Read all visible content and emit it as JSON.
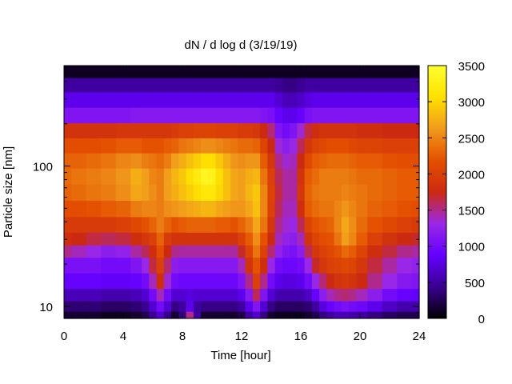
{
  "chart_data": {
    "type": "heatmap",
    "title": "dN / d log d (3/19/19)",
    "xlabel": "Time [hour]",
    "ylabel": "Particle size [nm]",
    "xlim": [
      0,
      24
    ],
    "ylim": [
      8.2,
      520
    ],
    "yscale": "log",
    "x_ticks": [
      0,
      4,
      8,
      12,
      16,
      20,
      24
    ],
    "y_ticks": [
      10,
      100
    ],
    "colorbar": {
      "range": [
        0,
        3500
      ],
      "ticks": [
        0,
        500,
        1000,
        1500,
        2000,
        2500,
        3000,
        3500
      ],
      "colormap": [
        "#000000",
        "#3a0090",
        "#6400ff",
        "#9a28e6",
        "#cc2a10",
        "#e45000",
        "#f09a1c",
        "#ffe100",
        "#ffff30"
      ]
    },
    "times_hour": [
      0,
      1,
      2,
      3,
      4,
      5,
      5.5,
      6,
      6.5,
      7,
      7.5,
      8,
      8.5,
      9,
      9.5,
      10,
      10.5,
      11,
      11.5,
      12,
      12.5,
      13,
      13.5,
      14,
      14.5,
      15,
      15.5,
      16,
      16.5,
      17,
      17.5,
      18,
      18.5,
      19,
      19.5,
      20,
      21,
      22,
      23,
      24
    ],
    "sizes_nm": [
      8.5,
      10,
      12,
      15,
      20,
      25,
      30,
      38,
      50,
      65,
      85,
      110,
      140,
      180,
      230,
      300,
      380,
      480
    ],
    "values": [
      [
        150,
        350,
        600,
        900,
        1050,
        1500,
        1800,
        1950,
        2150,
        2300,
        2350,
        2300,
        2150,
        1850,
        1100,
        800,
        500,
        100
      ],
      [
        150,
        350,
        600,
        900,
        1050,
        1400,
        1750,
        1950,
        2150,
        2350,
        2400,
        2300,
        2150,
        1850,
        1100,
        800,
        500,
        100
      ],
      [
        150,
        350,
        600,
        900,
        1050,
        1300,
        1650,
        1950,
        2200,
        2400,
        2450,
        2350,
        2150,
        1850,
        1100,
        800,
        500,
        100
      ],
      [
        100,
        300,
        550,
        850,
        1000,
        1200,
        1600,
        1950,
        2250,
        2450,
        2500,
        2400,
        2200,
        1850,
        1100,
        800,
        500,
        100
      ],
      [
        100,
        300,
        550,
        850,
        1000,
        1250,
        1650,
        2000,
        2300,
        2550,
        2600,
        2500,
        2250,
        1900,
        1100,
        800,
        500,
        100
      ],
      [
        150,
        350,
        600,
        900,
        1100,
        1450,
        1800,
        2100,
        2450,
        2700,
        2750,
        2550,
        2250,
        1900,
        1150,
        800,
        500,
        100
      ],
      [
        250,
        450,
        700,
        1000,
        1300,
        1600,
        1900,
        2200,
        2500,
        2650,
        2650,
        2450,
        2200,
        1900,
        1150,
        800,
        500,
        100
      ],
      [
        450,
        700,
        1000,
        1400,
        1650,
        1800,
        2000,
        2300,
        2500,
        2550,
        2500,
        2400,
        2200,
        1900,
        1150,
        800,
        500,
        100
      ],
      [
        700,
        1000,
        1400,
        1800,
        2000,
        2150,
        2300,
        2450,
        2450,
        2450,
        2450,
        2350,
        2200,
        1900,
        1150,
        800,
        500,
        100
      ],
      [
        400,
        700,
        1000,
        1350,
        1550,
        1750,
        1950,
        2300,
        2550,
        2650,
        2650,
        2450,
        2250,
        1900,
        1150,
        800,
        500,
        100
      ],
      [
        150,
        400,
        700,
        1000,
        1200,
        1500,
        1850,
        2200,
        2600,
        2750,
        2800,
        2650,
        2300,
        1950,
        1150,
        800,
        500,
        100
      ],
      [
        400,
        500,
        700,
        950,
        1150,
        1450,
        1850,
        2250,
        2650,
        2850,
        2900,
        2750,
        2400,
        2000,
        1150,
        800,
        500,
        100
      ],
      [
        1500,
        800,
        750,
        950,
        1150,
        1450,
        1850,
        2300,
        2700,
        2950,
        3050,
        2850,
        2450,
        2000,
        1150,
        800,
        500,
        100
      ],
      [
        500,
        500,
        700,
        950,
        1150,
        1450,
        1850,
        2300,
        2750,
        3050,
        3200,
        2950,
        2500,
        2050,
        1150,
        800,
        500,
        100
      ],
      [
        150,
        400,
        700,
        950,
        1150,
        1450,
        1850,
        2300,
        2800,
        3150,
        3350,
        3050,
        2550,
        2050,
        1150,
        800,
        500,
        100
      ],
      [
        150,
        400,
        700,
        950,
        1150,
        1450,
        1850,
        2300,
        2800,
        3150,
        3300,
        3050,
        2550,
        2050,
        1150,
        800,
        500,
        100
      ],
      [
        150,
        400,
        700,
        950,
        1150,
        1450,
        1850,
        2250,
        2700,
        3000,
        3050,
        2900,
        2500,
        2000,
        1150,
        800,
        500,
        100
      ],
      [
        150,
        400,
        700,
        950,
        1150,
        1450,
        1850,
        2250,
        2650,
        2850,
        2850,
        2750,
        2450,
        2000,
        1150,
        800,
        500,
        100
      ],
      [
        150,
        400,
        700,
        950,
        1150,
        1450,
        1850,
        2200,
        2600,
        2700,
        2700,
        2600,
        2400,
        2000,
        1150,
        800,
        500,
        100
      ],
      [
        250,
        500,
        800,
        1100,
        1400,
        1700,
        2000,
        2300,
        2600,
        2650,
        2650,
        2550,
        2350,
        1950,
        1150,
        800,
        500,
        100
      ],
      [
        500,
        800,
        1150,
        1500,
        1850,
        2050,
        2250,
        2450,
        2700,
        2800,
        2750,
        2600,
        2350,
        1950,
        1150,
        800,
        500,
        100
      ],
      [
        700,
        1100,
        1600,
        2000,
        2200,
        2400,
        2550,
        2700,
        2850,
        2900,
        2800,
        2600,
        2300,
        1900,
        1150,
        800,
        500,
        100
      ],
      [
        400,
        700,
        1100,
        1500,
        1800,
        2000,
        2200,
        2400,
        2500,
        2500,
        2400,
        2250,
        2050,
        1750,
        1100,
        800,
        500,
        100
      ],
      [
        150,
        400,
        700,
        1000,
        1300,
        1550,
        1750,
        1900,
        2000,
        2050,
        2000,
        1900,
        1750,
        1550,
        1050,
        800,
        500,
        100
      ],
      [
        100,
        300,
        550,
        800,
        1000,
        1250,
        1400,
        1500,
        1600,
        1650,
        1600,
        1500,
        1350,
        1100,
        900,
        700,
        450,
        100
      ],
      [
        100,
        300,
        550,
        750,
        950,
        1100,
        1250,
        1350,
        1400,
        1450,
        1450,
        1350,
        1200,
        1000,
        800,
        600,
        400,
        100
      ],
      [
        100,
        300,
        550,
        750,
        950,
        1050,
        1200,
        1300,
        1400,
        1450,
        1450,
        1400,
        1300,
        1100,
        800,
        600,
        400,
        100
      ],
      [
        100,
        300,
        550,
        800,
        1000,
        1200,
        1400,
        1600,
        1800,
        1900,
        1850,
        1750,
        1600,
        1350,
        900,
        650,
        450,
        100
      ],
      [
        150,
        350,
        650,
        1000,
        1300,
        1600,
        1850,
        2050,
        2250,
        2300,
        2250,
        2100,
        1900,
        1650,
        1050,
        750,
        500,
        100
      ],
      [
        250,
        500,
        900,
        1300,
        1700,
        1900,
        2050,
        2200,
        2350,
        2400,
        2350,
        2250,
        2050,
        1800,
        1100,
        800,
        500,
        100
      ],
      [
        400,
        750,
        1200,
        1550,
        1900,
        2000,
        2150,
        2250,
        2400,
        2450,
        2450,
        2300,
        2100,
        1850,
        1100,
        800,
        500,
        100
      ],
      [
        500,
        900,
        1400,
        1750,
        2000,
        2100,
        2200,
        2300,
        2400,
        2450,
        2450,
        2350,
        2150,
        1850,
        1100,
        800,
        500,
        100
      ],
      [
        600,
        1000,
        1500,
        1850,
        2050,
        2200,
        2400,
        2500,
        2500,
        2450,
        2450,
        2350,
        2150,
        1850,
        1100,
        800,
        500,
        100
      ],
      [
        600,
        1050,
        1550,
        1900,
        2100,
        2350,
        2650,
        2700,
        2600,
        2500,
        2450,
        2350,
        2150,
        1850,
        1100,
        800,
        500,
        100
      ],
      [
        550,
        1000,
        1500,
        1850,
        2050,
        2250,
        2500,
        2550,
        2500,
        2450,
        2400,
        2300,
        2100,
        1850,
        1100,
        800,
        500,
        100
      ],
      [
        500,
        950,
        1400,
        1750,
        1900,
        2050,
        2250,
        2350,
        2400,
        2400,
        2350,
        2250,
        2050,
        1800,
        1100,
        800,
        500,
        100
      ],
      [
        400,
        800,
        1200,
        1500,
        1650,
        1800,
        2000,
        2200,
        2300,
        2350,
        2350,
        2250,
        2050,
        1800,
        1100,
        800,
        500,
        100
      ],
      [
        300,
        650,
        1000,
        1300,
        1450,
        1650,
        1850,
        2100,
        2250,
        2300,
        2300,
        2200,
        2000,
        1750,
        1100,
        800,
        500,
        100
      ],
      [
        250,
        550,
        900,
        1150,
        1300,
        1500,
        1750,
        2000,
        2200,
        2250,
        2250,
        2150,
        2000,
        1750,
        1100,
        800,
        500,
        100
      ],
      [
        250,
        550,
        850,
        1100,
        1250,
        1450,
        1700,
        1950,
        2150,
        2250,
        2250,
        2150,
        2000,
        1750,
        1100,
        800,
        500,
        100
      ]
    ]
  }
}
